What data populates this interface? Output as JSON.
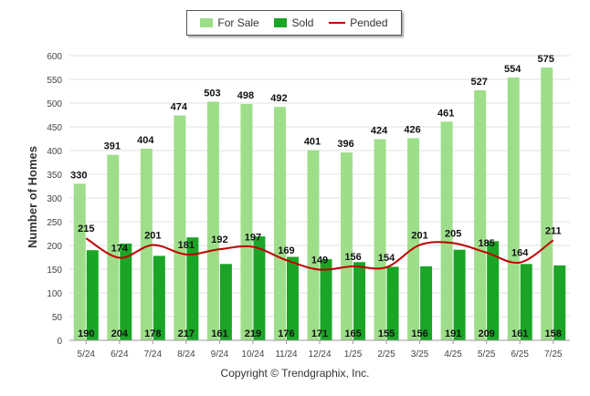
{
  "chart_data": {
    "type": "bar",
    "categories": [
      "5/24",
      "6/24",
      "7/24",
      "8/24",
      "9/24",
      "10/24",
      "11/24",
      "12/24",
      "1/25",
      "2/25",
      "3/25",
      "4/25",
      "5/25",
      "6/25",
      "7/25"
    ],
    "series": [
      {
        "name": "For Sale",
        "kind": "bar",
        "color": "#9ede8a",
        "values": [
          330,
          391,
          404,
          474,
          503,
          498,
          492,
          401,
          396,
          424,
          426,
          461,
          527,
          554,
          575
        ]
      },
      {
        "name": "Sold",
        "kind": "bar",
        "color": "#1aa526",
        "values": [
          190,
          204,
          178,
          217,
          161,
          219,
          176,
          171,
          165,
          155,
          156,
          191,
          209,
          161,
          158
        ]
      },
      {
        "name": "Pended",
        "kind": "line",
        "color": "#c00000",
        "values": [
          215,
          174,
          201,
          181,
          192,
          197,
          169,
          149,
          156,
          154,
          201,
          205,
          185,
          164,
          211
        ]
      }
    ],
    "ylabel": "Number of Homes",
    "xlabel": "",
    "ylim": [
      0,
      600
    ],
    "yticks": [
      0,
      50,
      100,
      150,
      200,
      250,
      300,
      350,
      400,
      450,
      500,
      550,
      600
    ],
    "grid": true,
    "legend_position": "top-center"
  },
  "legend": {
    "for_sale": "For Sale",
    "sold": "Sold",
    "pended": "Pended"
  },
  "copyright": "Copyright © Trendgraphix, Inc."
}
